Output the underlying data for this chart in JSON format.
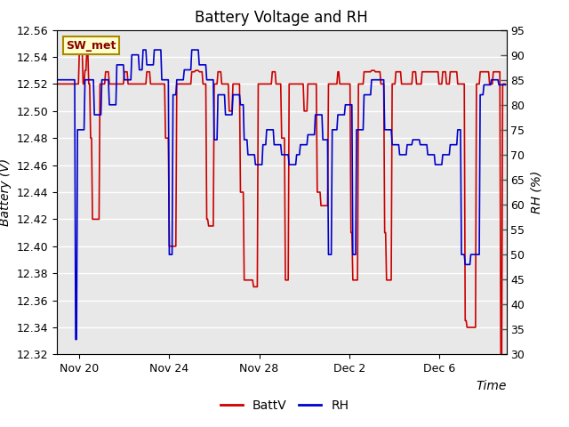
{
  "title": "Battery Voltage and RH",
  "xlabel": "Time",
  "ylabel_left": "Battery (V)",
  "ylabel_right": "RH (%)",
  "ylim_left": [
    12.32,
    12.56
  ],
  "ylim_right": [
    30,
    95
  ],
  "yticks_left": [
    12.32,
    12.34,
    12.36,
    12.38,
    12.4,
    12.42,
    12.44,
    12.46,
    12.48,
    12.5,
    12.52,
    12.54,
    12.56
  ],
  "yticks_right": [
    30,
    35,
    40,
    45,
    50,
    55,
    60,
    65,
    70,
    75,
    80,
    85,
    90,
    95
  ],
  "color_batt": "#cc0000",
  "color_rh": "#0000cc",
  "legend_label_batt": "BattV",
  "legend_label_rh": "RH",
  "station_label": "SW_met",
  "station_box_facecolor": "#ffffcc",
  "station_box_edgecolor": "#aa8800",
  "background_color": "#ffffff",
  "plot_bg_color": "#e8e8e8",
  "grid_color": "#ffffff",
  "title_fontsize": 12,
  "axis_label_fontsize": 10,
  "tick_fontsize": 9,
  "legend_fontsize": 10,
  "line_width": 1.2
}
